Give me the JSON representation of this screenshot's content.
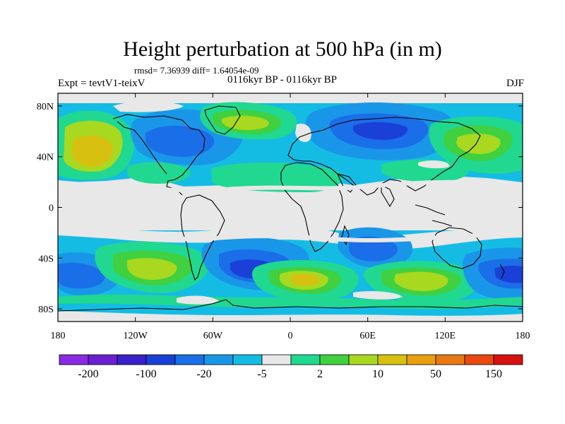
{
  "title": "Height perturbation at 500 hPa (in m)",
  "stats": "rmsd= 7.36939 diff= 1.64054e-09",
  "experiment": "Expt = tevtV1-teixV",
  "subtitle": "0116kyr BP - 0116kyr BP",
  "season": "DJF",
  "map": {
    "lon_range": [
      -180,
      180
    ],
    "lat_range": [
      -90,
      90
    ],
    "lat_ticks": [
      "80N",
      "40N",
      "0",
      "40S",
      "80S"
    ],
    "lon_ticks": [
      "180",
      "120W",
      "60W",
      "0",
      "60E",
      "120E",
      "180"
    ]
  },
  "colorbar": {
    "colors": [
      "#8a2be2",
      "#6a1fd0",
      "#3a20c8",
      "#1a40d8",
      "#1a6ee8",
      "#1a96e8",
      "#14bce4",
      "#e8e8e8",
      "#20d890",
      "#40d040",
      "#a8d820",
      "#d8c010",
      "#e8a010",
      "#e87810",
      "#e84810",
      "#d81010"
    ],
    "tick_labels": [
      "-200",
      "-100",
      "-20",
      "-5",
      "2",
      "10",
      "50",
      "150"
    ]
  }
}
